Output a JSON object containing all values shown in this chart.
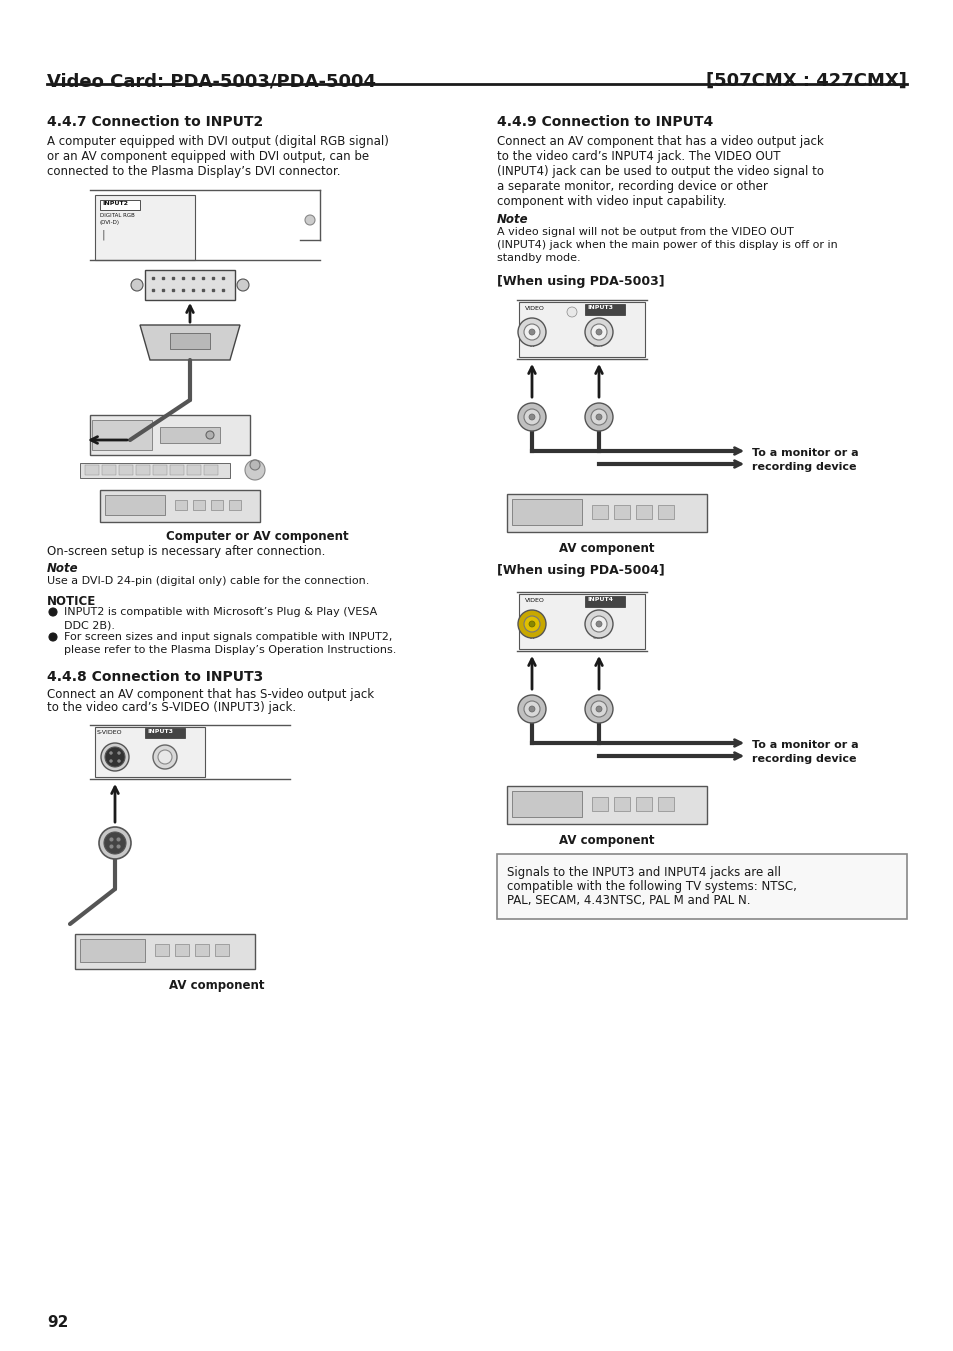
{
  "title_left": "Video Card: PDA-5003/PDA-5004",
  "title_right": "[507CMX : 427CMX]",
  "page_number": "92",
  "bg_color": "#ffffff",
  "text_color": "#2d2d2d",
  "section1_heading": "4.4.7 Connection to INPUT2",
  "section1_body1": "A computer equipped with DVI output (digital RGB signal)",
  "section1_body2": "or an AV component equipped with DVI output, can be",
  "section1_body3": "connected to the Plasma Display’s DVI connector.",
  "section1_caption": "Computer or AV component",
  "section1_onscreen": "On-screen setup is necessary after connection.",
  "section1_note_heading": "Note",
  "section1_note": "Use a DVI-D 24-pin (digital only) cable for the connection.",
  "section1_notice_heading": "NOTICE",
  "section1_notice1": "INPUT2 is compatible with Microsoft’s Plug & Play (VESA",
  "section1_notice1b": "DDC 2B).",
  "section1_notice2": "For screen sizes and input signals compatible with INPUT2,",
  "section1_notice2b": "please refer to the Plasma Display’s Operation Instructions.",
  "section2_heading": "4.4.8 Connection to INPUT3",
  "section2_body1": "Connect an AV component that has S-video output jack",
  "section2_body2": "to the video card’s S-VIDEO (INPUT3) jack.",
  "section2_caption": "AV component",
  "section3_heading": "4.4.9 Connection to INPUT4",
  "section3_body1": "Connect an AV component that has a video output jack",
  "section3_body2": "to the video card’s INPUT4 jack. The VIDEO OUT",
  "section3_body3": "(INPUT4) jack can be used to output the video signal to",
  "section3_body4": "a separate monitor, recording device or other",
  "section3_body5": "component with video input capability.",
  "section3_note_heading": "Note",
  "section3_note1": "A video signal will not be output from the VIDEO OUT",
  "section3_note2": "(INPUT4) jack when the main power of this display is off or in",
  "section3_note3": "standby mode.",
  "section3a_subheading": "[When using PDA-5003]",
  "section3a_caption": "AV component",
  "monitor_label1": "To a monitor or a",
  "monitor_label2": "recording device",
  "section3b_subheading": "[When using PDA-5004]",
  "section3b_caption": "AV component",
  "bottom_box1": "Signals to the INPUT3 and INPUT4 jacks are all",
  "bottom_box2": "compatible with the following TV systems: NTSC,",
  "bottom_box3": "PAL, SECAM, 4.43NTSC, PAL M and PAL N.",
  "dark": "#1a1a1a",
  "gray": "#888888",
  "light_gray": "#d8d8d8",
  "mid_gray": "#aaaaaa"
}
